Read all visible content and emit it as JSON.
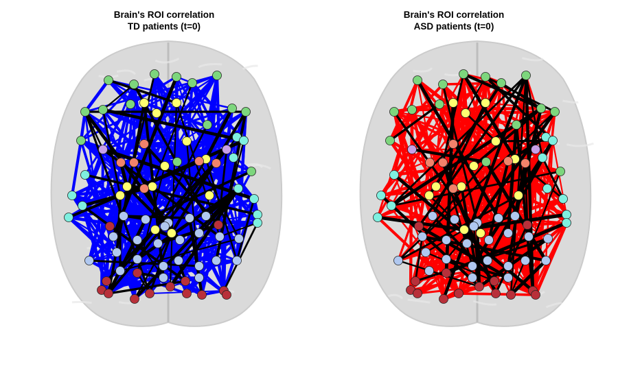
{
  "panels": [
    {
      "id": "td",
      "title_line1": "Brain's ROI correlation",
      "title_line2": "TD patients (t=0)",
      "edge_color": "#0000ff"
    },
    {
      "id": "asd",
      "title_line1": "Brain's ROI correlation",
      "title_line2": "ASD patients (t=0)",
      "edge_color": "#ff0000"
    }
  ],
  "colors": {
    "brain_fill": "#d4d4d4",
    "brain_outline": "#c2c2c2",
    "strong_edge": "#000000",
    "node_green": "#7dd67d",
    "node_cyan": "#7ff0e0",
    "node_yellow": "#ffff70",
    "node_orange": "#f2836b",
    "node_purple": "#c8a0e8",
    "node_lightblue": "#b0c8f0",
    "node_darkred": "#b8303a"
  }
}
